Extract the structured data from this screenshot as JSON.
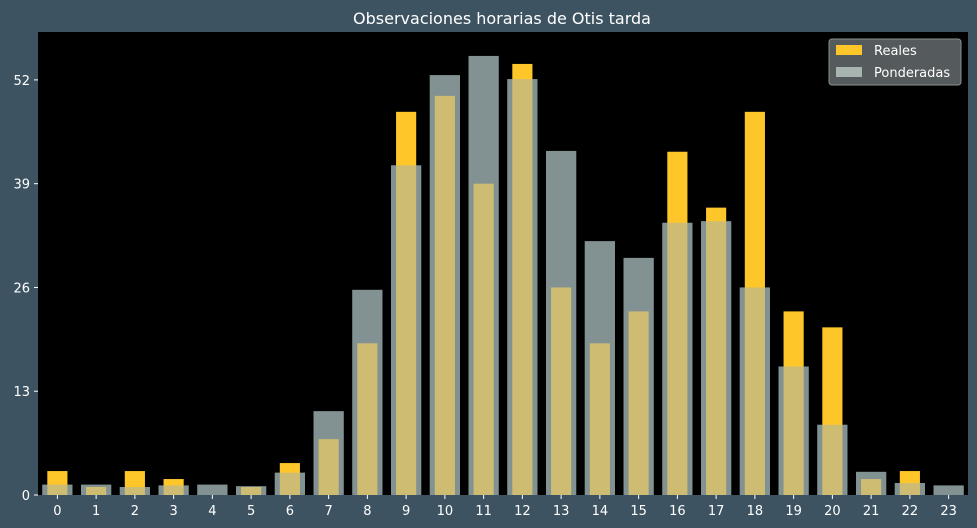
{
  "chart_data": {
    "type": "bar",
    "title": "Observaciones horarias de Otis tarda",
    "xlabel": "",
    "ylabel": "",
    "categories": [
      "0",
      "1",
      "2",
      "3",
      "4",
      "5",
      "6",
      "7",
      "8",
      "9",
      "10",
      "11",
      "12",
      "13",
      "14",
      "15",
      "16",
      "17",
      "18",
      "19",
      "20",
      "21",
      "22",
      "23"
    ],
    "yticks": [
      0,
      13,
      26,
      39,
      52
    ],
    "ylim": [
      0,
      58
    ],
    "grid": false,
    "legend_position": "top-right",
    "series": [
      {
        "name": "Reales",
        "color": "#ffc629",
        "values": [
          3,
          1,
          3,
          2,
          0,
          1,
          4,
          7,
          19,
          48,
          50,
          39,
          54,
          26,
          19,
          23,
          43,
          36,
          48,
          23,
          21,
          2,
          3,
          0
        ]
      },
      {
        "name": "Ponderadas",
        "color": "#a8b4b0",
        "values": [
          1.3,
          1.3,
          1.0,
          1.2,
          1.3,
          1.1,
          2.8,
          10.5,
          25.7,
          41.3,
          52.6,
          55.0,
          52.1,
          43.1,
          31.8,
          29.7,
          34.1,
          34.3,
          26.0,
          16.1,
          8.8,
          2.9,
          1.5,
          1.2
        ]
      }
    ]
  }
}
